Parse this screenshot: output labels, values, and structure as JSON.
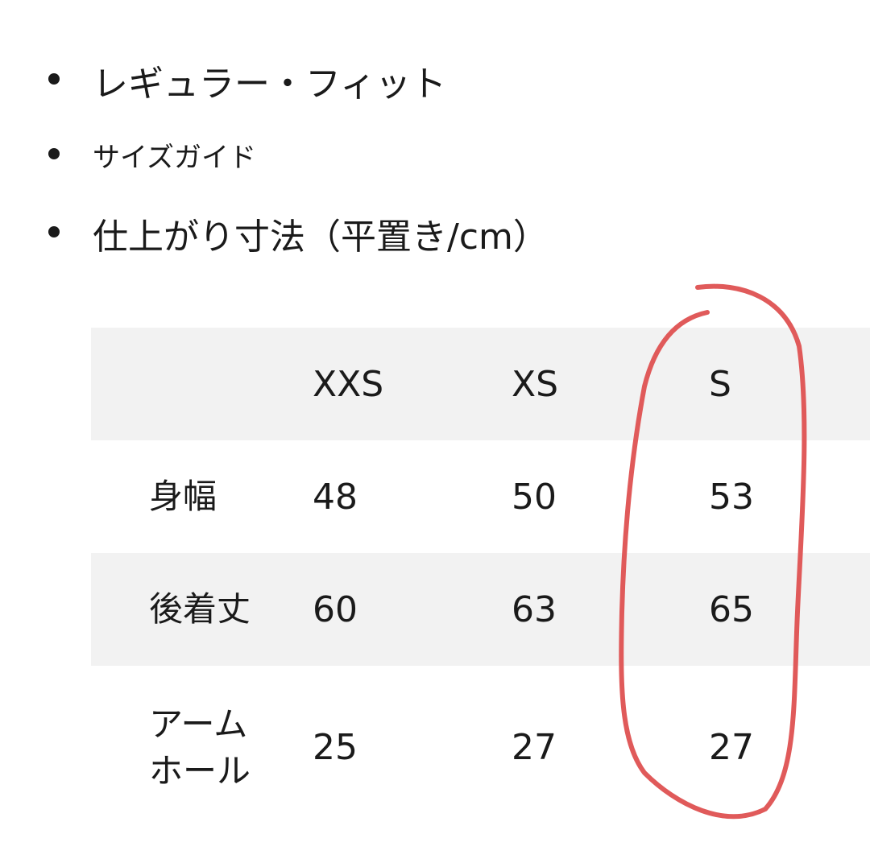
{
  "bullets": [
    {
      "text": "レギュラー・フィット"
    },
    {
      "text": "サイズガイド"
    },
    {
      "text": "仕上がり寸法（平置き/cm）"
    }
  ],
  "table": {
    "headers": [
      "",
      "XXS",
      "XS",
      "S"
    ],
    "rows": [
      {
        "label": "身幅",
        "values": [
          "48",
          "50",
          "53"
        ]
      },
      {
        "label": "後着丈",
        "values": [
          "60",
          "63",
          "65"
        ]
      },
      {
        "label": "アーム\nホール",
        "values": [
          "25",
          "27",
          "27"
        ]
      }
    ]
  },
  "annotation": {
    "type": "hand-drawn circle around column S",
    "color": "#e05a5a"
  },
  "colors": {
    "row_stripe": "#f2f2f2",
    "text": "#1a1a1a"
  }
}
